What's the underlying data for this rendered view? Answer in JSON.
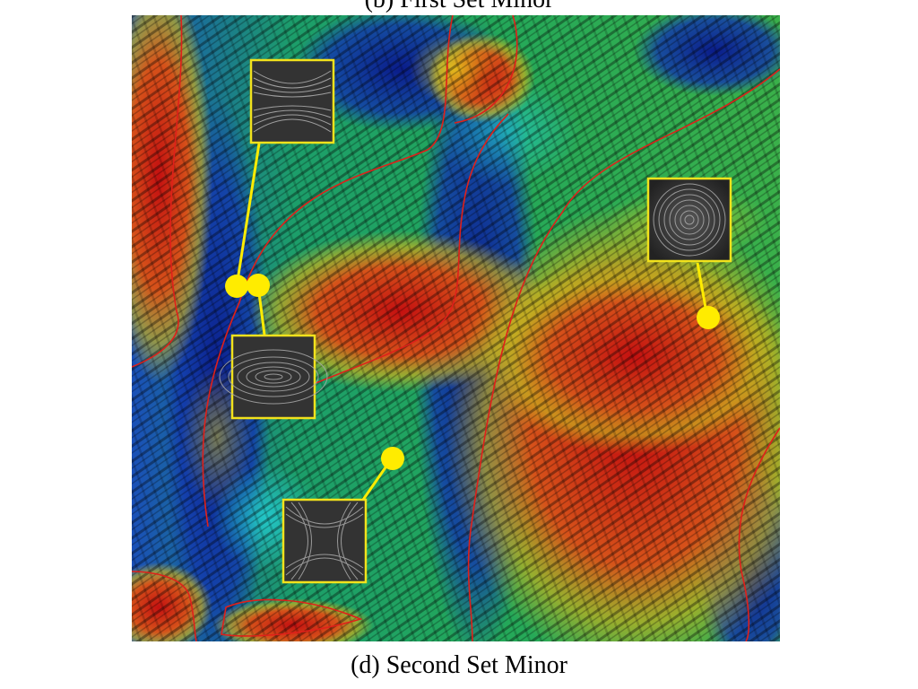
{
  "captions": {
    "top": "(b) First Set Minor",
    "bottom": "(d) Second Set Minor"
  },
  "colors": {
    "separatrix": "#e0201a",
    "marker": "#ffec00",
    "inset_frame": "#f2e21c",
    "inset_bg": "#3a3a3a"
  },
  "insets": [
    {
      "pattern": "saddle-horizontal"
    },
    {
      "pattern": "center-concentric"
    },
    {
      "pattern": "ellipse-horizontal"
    },
    {
      "pattern": "saddle-cross"
    }
  ]
}
